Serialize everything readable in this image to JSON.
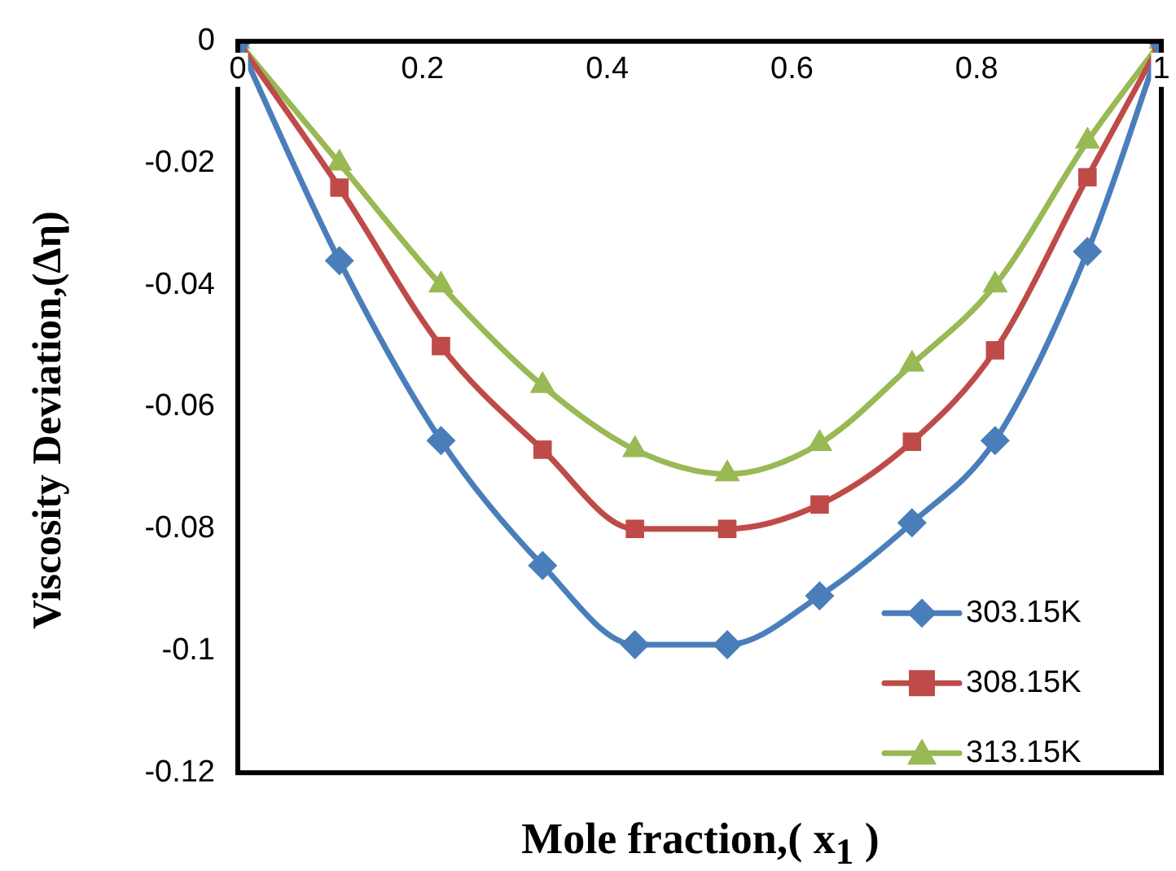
{
  "chart_data": {
    "type": "line",
    "xlabel": "Mole fraction,( x$_{1}$ )",
    "ylabel": "Viscosity Deviation,(Δη)",
    "x": [
      0,
      0.11,
      0.22,
      0.33,
      0.43,
      0.53,
      0.63,
      0.73,
      0.82,
      0.92,
      1
    ],
    "series": [
      {
        "name": "303.15K",
        "color": "#4a7ebb",
        "marker": "diamond",
        "values": [
          0,
          -0.036,
          -0.0655,
          -0.086,
          -0.099,
          -0.099,
          -0.091,
          -0.079,
          -0.0655,
          -0.0345,
          0
        ]
      },
      {
        "name": "308.15K",
        "color": "#be4b48",
        "marker": "square",
        "values": [
          0,
          -0.024,
          -0.05,
          -0.067,
          -0.08,
          -0.08,
          -0.076,
          -0.0657,
          -0.0507,
          -0.0223,
          0
        ]
      },
      {
        "name": "313.15K",
        "color": "#98b954",
        "marker": "triangle",
        "values": [
          0,
          -0.02,
          -0.04,
          -0.0565,
          -0.067,
          -0.071,
          -0.066,
          -0.053,
          -0.04,
          -0.0164,
          0
        ]
      }
    ],
    "xlim": [
      0,
      1
    ],
    "xticks": [
      0,
      0.2,
      0.4,
      0.6,
      0.8,
      1
    ],
    "ylim": [
      -0.12,
      0
    ],
    "yticks": [
      0,
      -0.02,
      -0.04,
      -0.06,
      -0.08,
      -0.1,
      -0.12
    ],
    "grid": false,
    "legend": "bottom right",
    "line_style": "solid"
  }
}
